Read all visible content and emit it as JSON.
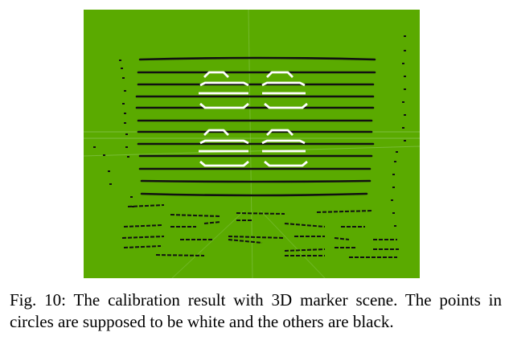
{
  "figure": {
    "background_color": "#5aaa00",
    "black_point_color": "#111111",
    "white_point_color": "#ffffff",
    "grid_line_color": "#8cc85a"
  },
  "caption": {
    "text": "Fig. 10: The calibration result with 3D marker scene. The points in circles are supposed to be white and the others are black."
  }
}
